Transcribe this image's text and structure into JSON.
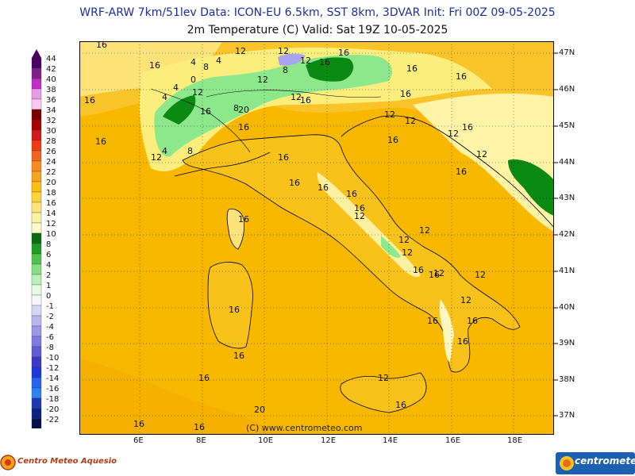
{
  "header": {
    "line1": "WRF-ARW 7km/51lev   Data: ICON-EU 6.5km, SST 8km, 3DVAR   Init: Fri 00Z 09-05-2025",
    "line2": "2m Temperature (C)  Valid: Sat 19Z 10-05-2025"
  },
  "colors": {
    "background": "#ffffff",
    "sea_warm": "#f8b800",
    "land_warm": "#f9be07",
    "land_mid": "#fcd84e",
    "land_cool": "#fbee7d",
    "pale": "#ffffb8",
    "green_light": "#8de88b",
    "green_dark": "#0a8a12",
    "violet": "#a9a4f0",
    "header_text": "#1b2f9a",
    "coast": "#000000"
  },
  "legend": {
    "values": [
      "44",
      "42",
      "40",
      "38",
      "36",
      "34",
      "32",
      "30",
      "28",
      "26",
      "24",
      "22",
      "20",
      "18",
      "16",
      "14",
      "12",
      "10",
      "8",
      "6",
      "4",
      "2",
      "1",
      "0",
      "-1",
      "-2",
      "-4",
      "-6",
      "-8",
      "-10",
      "-12",
      "-14",
      "-16",
      "-18",
      "-20",
      "-22"
    ],
    "colors": [
      "#4b0063",
      "#7e2086",
      "#c22cc7",
      "#e99ae6",
      "#f7c8f3",
      "#7a0000",
      "#a80000",
      "#d31b1b",
      "#f03d10",
      "#f36324",
      "#f88b20",
      "#f5a41d",
      "#f9c010",
      "#fbd53a",
      "#fde676",
      "#fff29e",
      "#fffac9",
      "#0b6d12",
      "#1f9d22",
      "#4ec34c",
      "#87df85",
      "#b9f1b6",
      "#e6fbe2",
      "#f6f6ff",
      "#d6d6f5",
      "#b8b6ee",
      "#9c97e8",
      "#7f7ae2",
      "#5f5bd9",
      "#3d38c6",
      "#1d39d8",
      "#2564f0",
      "#2c82f0",
      "#1a3bb0",
      "#0d1f80",
      "#06104b"
    ]
  },
  "axes": {
    "latitudes": [
      "47N",
      "46N",
      "45N",
      "44N",
      "43N",
      "42N",
      "41N",
      "40N",
      "39N",
      "38N",
      "37N"
    ],
    "longitudes": [
      "6E",
      "8E",
      "10E",
      "12E",
      "14E",
      "16E",
      "18E"
    ]
  },
  "contour_labels": [
    "16",
    "12",
    "4",
    "8",
    "4",
    "12",
    "8",
    "12",
    "16",
    "16",
    "0",
    "12",
    "16",
    "4",
    "12",
    "16",
    "8",
    "16",
    "4",
    "12",
    "16",
    "16",
    "20",
    "16",
    "16",
    "12",
    "12",
    "16",
    "16",
    "16",
    "12",
    "16",
    "12",
    "4",
    "8",
    "16",
    "12",
    "16",
    "16",
    "16",
    "16",
    "16",
    "12",
    "12",
    "16",
    "12",
    "16",
    "12",
    "16",
    "12",
    "16",
    "12",
    "16",
    "16",
    "16",
    "16",
    "16",
    "20",
    "16",
    "16",
    "12",
    "16",
    "12"
  ],
  "copyright": "(C) www.centrometeo.com",
  "footer": {
    "left_logo": "Centro Meteo Aquesio",
    "right_logo": "centrometeo"
  }
}
